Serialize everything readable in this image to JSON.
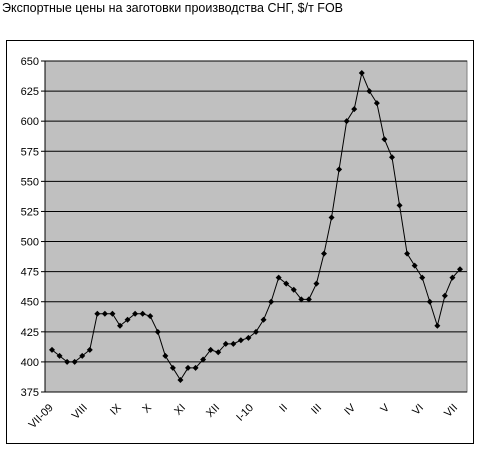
{
  "title": "Экспортные цены на заготовки производства СНГ, $/т FOB",
  "colors": {
    "plot_bg": "#c0c0c0",
    "grid": "#000000",
    "line": "#000000",
    "marker": "#000000"
  },
  "chart_data": {
    "type": "line",
    "title": "Экспортные цены на заготовки производства СНГ, $/т FOB",
    "xlabel": "",
    "ylabel": "",
    "ylim": [
      375,
      650
    ],
    "yticks": [
      375,
      400,
      425,
      450,
      475,
      500,
      525,
      550,
      575,
      600,
      625,
      650
    ],
    "grid": true,
    "legend": "none",
    "month_labels": [
      {
        "label": "VII-09",
        "index": 0
      },
      {
        "label": "VIII",
        "index": 4.5
      },
      {
        "label": "IX",
        "index": 9
      },
      {
        "label": "X",
        "index": 13
      },
      {
        "label": "XI",
        "index": 17.5
      },
      {
        "label": "XII",
        "index": 22
      },
      {
        "label": "I-10",
        "index": 26.5
      },
      {
        "label": "II",
        "index": 31
      },
      {
        "label": "III",
        "index": 35.5
      },
      {
        "label": "IV",
        "index": 40
      },
      {
        "label": "V",
        "index": 44.5
      },
      {
        "label": "VI",
        "index": 49
      },
      {
        "label": "VII",
        "index": 53.5
      }
    ],
    "series": [
      {
        "values": [
          410,
          405,
          400,
          400,
          405,
          410,
          440,
          440,
          440,
          430,
          435,
          440,
          440,
          438,
          425,
          405,
          395,
          385,
          395,
          395,
          402,
          410,
          408,
          415,
          415,
          418,
          420,
          425,
          435,
          450,
          470,
          465,
          460,
          452,
          452,
          465,
          490,
          520,
          560,
          600,
          610,
          640,
          625,
          615,
          585,
          570,
          530,
          490,
          480,
          470,
          450,
          430,
          455,
          470,
          477
        ]
      }
    ]
  }
}
